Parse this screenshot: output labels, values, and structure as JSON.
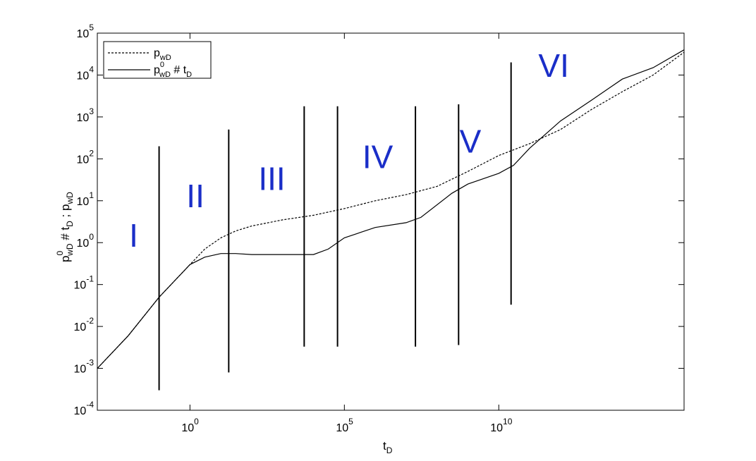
{
  "chart_data": {
    "type": "line",
    "title": "",
    "x_scale": "log",
    "y_scale": "log",
    "xlim": [
      0.001,
      1e+16
    ],
    "ylim": [
      0.0001,
      100000
    ],
    "grid": false,
    "legend_position": "top-left",
    "xlabel": {
      "main": "t",
      "sub": "D"
    },
    "ylabel": "p⁰wD # tD ; pwD",
    "x_ticks": [
      {
        "value": 1,
        "base": "10",
        "exp": "0"
      },
      {
        "value": 100000,
        "base": "10",
        "exp": "5"
      },
      {
        "value": 10000000000,
        "base": "10",
        "exp": "10"
      }
    ],
    "y_ticks": [
      {
        "value": 0.0001,
        "base": "10",
        "exp": "-4"
      },
      {
        "value": 0.001,
        "base": "10",
        "exp": "-3"
      },
      {
        "value": 0.01,
        "base": "10",
        "exp": "-2"
      },
      {
        "value": 0.1,
        "base": "10",
        "exp": "-1"
      },
      {
        "value": 1,
        "base": "10",
        "exp": "0"
      },
      {
        "value": 10,
        "base": "10",
        "exp": "1"
      },
      {
        "value": 100,
        "base": "10",
        "exp": "2"
      },
      {
        "value": 1000,
        "base": "10",
        "exp": "3"
      },
      {
        "value": 10000,
        "base": "10",
        "exp": "4"
      },
      {
        "value": 100000,
        "base": "10",
        "exp": "5"
      }
    ],
    "legend": [
      {
        "text": "p",
        "sub": "wD",
        "sup": "",
        "suffix": "",
        "suffix_sub": "",
        "style": "dashed"
      },
      {
        "text": "p",
        "sub": "wD",
        "sup": "0",
        "suffix": " # t",
        "suffix_sub": "D",
        "style": "solid"
      }
    ],
    "series": [
      {
        "style": "dashed",
        "x": [
          0.001,
          0.01,
          0.1,
          1,
          3,
          10,
          30,
          100,
          1000,
          10000,
          100000,
          1000000,
          10000000,
          100000000,
          1000000000,
          10000000000,
          100000000000,
          1000000000000,
          10000000000000,
          100000000000000,
          1000000000000000,
          1e+16
        ],
        "y": [
          0.001,
          0.006,
          0.05,
          0.3,
          0.7,
          1.3,
          1.9,
          2.5,
          3.5,
          4.5,
          6.5,
          10,
          14,
          22,
          50,
          120,
          230,
          500,
          1500,
          4000,
          10000,
          35000
        ]
      },
      {
        "style": "solid",
        "x": [
          0.001,
          0.01,
          0.1,
          1,
          3,
          10,
          30,
          100,
          1000,
          10000,
          30000,
          100000,
          1000000,
          10000000,
          30000000,
          300000000,
          1000000000,
          10000000000,
          30000000000,
          100000000000,
          1000000000000,
          10000000000000,
          100000000000000,
          1000000000000000,
          1e+16
        ],
        "y": [
          0.001,
          0.006,
          0.05,
          0.3,
          0.45,
          0.55,
          0.55,
          0.52,
          0.52,
          0.52,
          0.7,
          1.3,
          2.3,
          3,
          4,
          15,
          25,
          45,
          70,
          180,
          800,
          2500,
          8000,
          15000,
          40000
        ]
      }
    ],
    "vertical_lines": [
      {
        "x": 0.1,
        "y_min": 0.0003,
        "y_max": 200
      },
      {
        "x": 18,
        "y_min": 0.0008,
        "y_max": 500
      },
      {
        "x": 5000,
        "y_min": 0.0033,
        "y_max": 1800
      },
      {
        "x": 60000,
        "y_min": 0.0033,
        "y_max": 1800
      },
      {
        "x": 20000000,
        "y_min": 0.0033,
        "y_max": 1800
      },
      {
        "x": 500000000,
        "y_min": 0.0036,
        "y_max": 2000
      },
      {
        "x": 25000000000,
        "y_min": 0.033,
        "y_max": 20000
      }
    ],
    "regions": [
      {
        "label": "I",
        "x": 0.015,
        "y": 0.8
      },
      {
        "label": "II",
        "x": 1.5,
        "y": 7
      },
      {
        "label": "III",
        "x": 450,
        "y": 18
      },
      {
        "label": "IV",
        "x": 1200000,
        "y": 60
      },
      {
        "label": "V",
        "x": 1200000000,
        "y": 140
      },
      {
        "label": "VI",
        "x": 600000000000,
        "y": 9000
      }
    ]
  }
}
